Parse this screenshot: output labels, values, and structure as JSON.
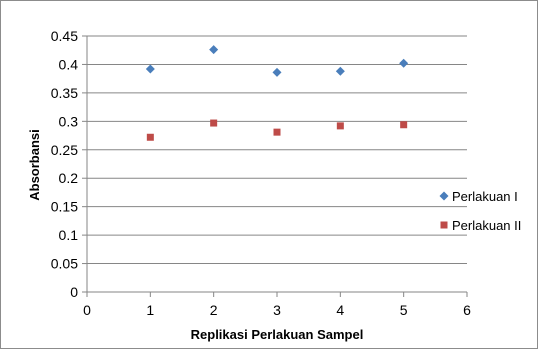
{
  "chart_data": {
    "type": "scatter",
    "xlabel": "Replikasi Perlakuan Sampel",
    "ylabel": "Absorbansi",
    "xlim": [
      0,
      6
    ],
    "ylim": [
      0,
      0.45
    ],
    "xticks": [
      "0",
      "1",
      "2",
      "3",
      "4",
      "5",
      "6"
    ],
    "yticks": [
      "0",
      "0.05",
      "0.1",
      "0.15",
      "0.2",
      "0.25",
      "0.3",
      "0.35",
      "0.4",
      "0.45"
    ],
    "grid": "horizontal",
    "legend_position": "right",
    "series": [
      {
        "name": "Perlakuan I",
        "marker": "diamond",
        "color": "#4a7ebb",
        "x": [
          1,
          2,
          3,
          4,
          5
        ],
        "y": [
          0.392,
          0.426,
          0.386,
          0.388,
          0.402
        ]
      },
      {
        "name": "Perlakuan II",
        "marker": "square",
        "color": "#be4b48",
        "x": [
          1,
          2,
          3,
          4,
          5
        ],
        "y": [
          0.272,
          0.297,
          0.281,
          0.292,
          0.294
        ]
      }
    ]
  }
}
